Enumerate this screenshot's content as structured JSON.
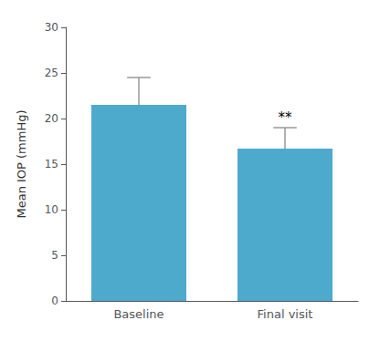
{
  "chart_data": {
    "type": "bar",
    "categories": [
      "Baseline",
      "Final visit"
    ],
    "values": [
      21.5,
      16.7
    ],
    "errors_upper": [
      3.0,
      2.3
    ],
    "color": "#4DAACC",
    "ylabel": "Mean IOP (mmHg)",
    "ylim": [
      0,
      30
    ],
    "yticks": [
      0,
      5,
      10,
      15,
      20,
      25,
      30
    ],
    "grid": false,
    "annotations": [
      {
        "text": "**",
        "category": "Final visit"
      }
    ]
  }
}
